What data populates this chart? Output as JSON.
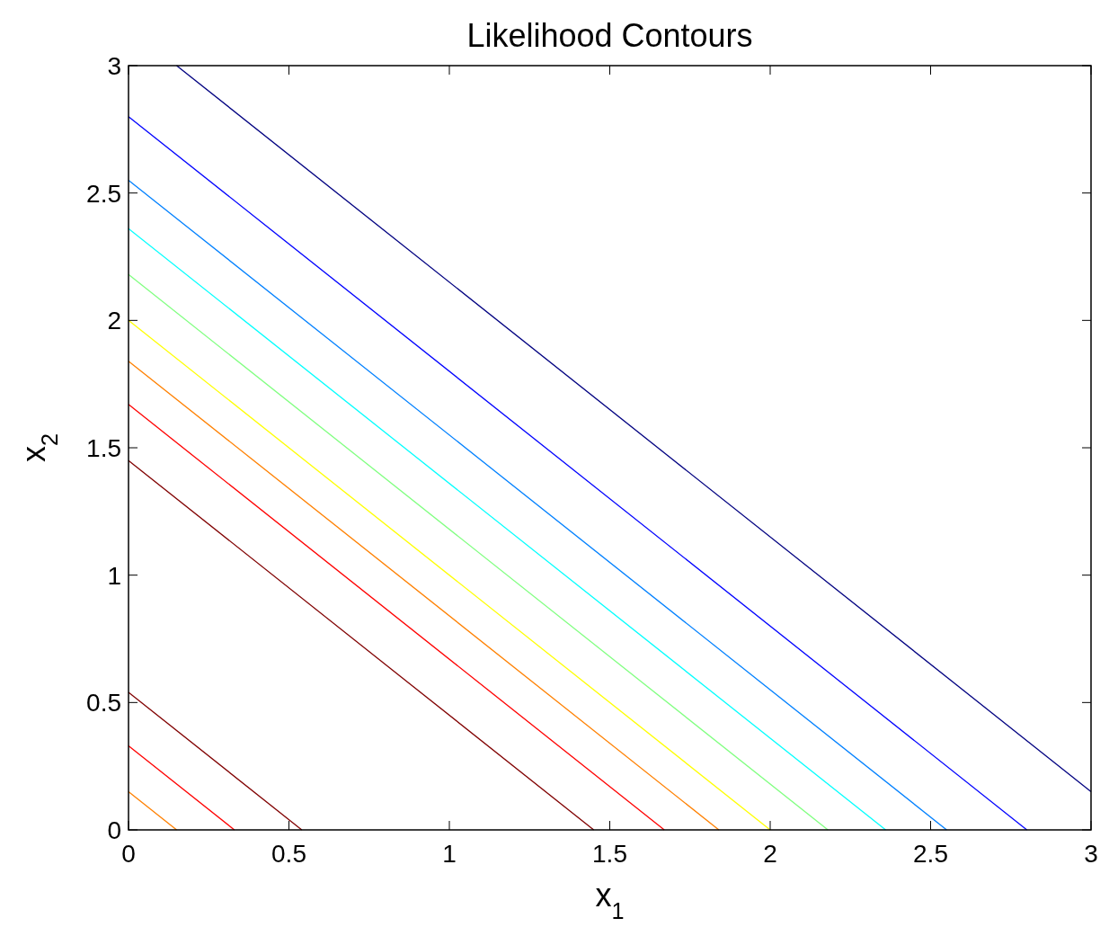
{
  "chart_data": {
    "type": "line",
    "title": "Likelihood Contours",
    "xlabel": "x$_{1}$",
    "ylabel": "x$_{2}$",
    "xlim": [
      0,
      3
    ],
    "ylim": [
      0,
      3
    ],
    "xticks": [
      0,
      0.5,
      1,
      1.5,
      2,
      2.5,
      3
    ],
    "yticks": [
      0,
      0.5,
      1,
      1.5,
      2,
      2.5,
      3
    ],
    "grid": false,
    "line_style": "solid",
    "series": [
      {
        "color": "#ff8000",
        "x": [
          0,
          0.15
        ],
        "values": [
          0.15,
          0
        ]
      },
      {
        "color": "#ff0000",
        "x": [
          0,
          0.33
        ],
        "values": [
          0.33,
          0
        ]
      },
      {
        "color": "#800000",
        "x": [
          0,
          0.54
        ],
        "values": [
          0.54,
          0
        ]
      },
      {
        "color": "#800000",
        "x": [
          0,
          1.45
        ],
        "values": [
          1.45,
          0
        ]
      },
      {
        "color": "#ff0000",
        "x": [
          0,
          1.67
        ],
        "values": [
          1.67,
          0
        ]
      },
      {
        "color": "#ff8000",
        "x": [
          0,
          1.84
        ],
        "values": [
          1.84,
          0
        ]
      },
      {
        "color": "#ffff00",
        "x": [
          0,
          2.0
        ],
        "values": [
          2.0,
          0
        ]
      },
      {
        "color": "#80ff80",
        "x": [
          0,
          2.18
        ],
        "values": [
          2.18,
          0
        ]
      },
      {
        "color": "#00ffff",
        "x": [
          0,
          2.36
        ],
        "values": [
          2.36,
          0
        ]
      },
      {
        "color": "#0080ff",
        "x": [
          0,
          2.55
        ],
        "values": [
          2.55,
          0
        ]
      },
      {
        "color": "#0000ff",
        "x": [
          0,
          2.8
        ],
        "values": [
          2.8,
          0
        ]
      },
      {
        "color": "#000080",
        "x": [
          0.15,
          3
        ],
        "values": [
          3,
          0.15
        ]
      }
    ]
  }
}
